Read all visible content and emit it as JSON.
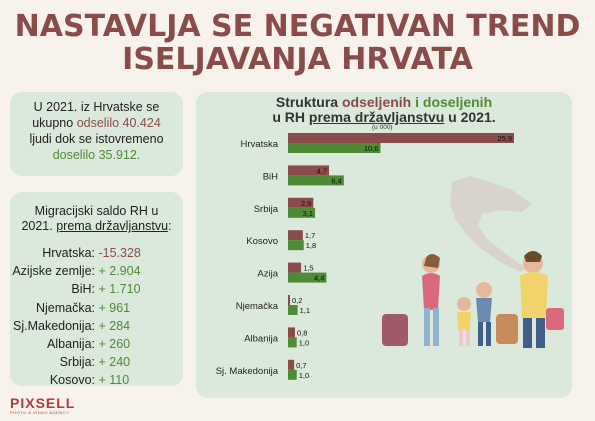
{
  "title": {
    "line1": "NASTAVLJA SE NEGATIVAN TREND",
    "line2": "ISELJAVANJA HRVATA"
  },
  "info_box": {
    "part1": "U 2021. iz Hrvatske se",
    "part2": "ukupno",
    "odselilo": "odselilo 40.424",
    "part3": "ljudi dok se istovremeno",
    "doselilo": "doselilo 35.912."
  },
  "saldo": {
    "heading1": "Migracijski saldo RH u",
    "heading2_pre": "2021.",
    "heading2_u": "prema državljanstvu",
    "heading2_post": ":",
    "rows": [
      {
        "label": "Hrvatska:",
        "value": "-15.328",
        "color": "#8a4b4b"
      },
      {
        "label": "Azijske zemlje:",
        "value": "+ 2.904",
        "color": "#4f8a36"
      },
      {
        "label": "BiH:",
        "value": "+ 1.710",
        "color": "#4f8a36"
      },
      {
        "label": "Njemačka:",
        "value": "+ 961",
        "color": "#4f8a36"
      },
      {
        "label": "Sj.Makedonija:",
        "value": "+ 284",
        "color": "#4f8a36"
      },
      {
        "label": "Albanija:",
        "value": "+ 260",
        "color": "#4f8a36"
      },
      {
        "label": "Srbija:",
        "value": "+ 240",
        "color": "#4f8a36"
      },
      {
        "label": "Kosovo:",
        "value": "+ 110",
        "color": "#4f8a36"
      }
    ]
  },
  "chart_title": {
    "l1_a": "Struktura",
    "l1_b": "odseljenih",
    "l1_c": "i",
    "l1_d": "doseljenih",
    "l2_a": "u RH",
    "l2_b": "prema državljanstvu",
    "l2_c": "u 2021."
  },
  "chart_data": {
    "type": "bar",
    "title": "Struktura odseljenih i doseljenih u RH prema državljanstvu u 2021.",
    "unit": "(u 000)",
    "categories": [
      "Hrvatska",
      "BiH",
      "Srbija",
      "Kosovo",
      "Azija",
      "Njemačka",
      "Albanija",
      "Sj. Makedonija"
    ],
    "series": [
      {
        "name": "odseljenih",
        "color": "#8a4b4b",
        "values": [
          25.9,
          4.7,
          2.9,
          1.7,
          1.5,
          0.2,
          0.8,
          0.7
        ],
        "labels": [
          "25,9",
          "4,7",
          "2,9",
          "1,7",
          "1,5",
          "0,2",
          "0,8",
          "0,7"
        ]
      },
      {
        "name": "doseljenih",
        "color": "#4f8a36",
        "values": [
          10.6,
          6.4,
          3.1,
          1.8,
          4.4,
          1.1,
          1.0,
          1.0
        ],
        "labels": [
          "10,6",
          "6,4",
          "3,1",
          "1,8",
          "4,4",
          "1,1",
          "1,0",
          "1,0"
        ]
      }
    ],
    "xlim": [
      0,
      25.9
    ]
  },
  "logo": {
    "name": "PIXSELL",
    "sub": "PHOTO & VIDEO AGENCY"
  },
  "colors": {
    "accent_red": "#8a4b4b",
    "accent_green": "#4f8a36",
    "card_bg": "#dbe8dc"
  },
  "decorative_icons": [
    "croatia-map-silhouette-icon",
    "migrating-family-icon"
  ]
}
